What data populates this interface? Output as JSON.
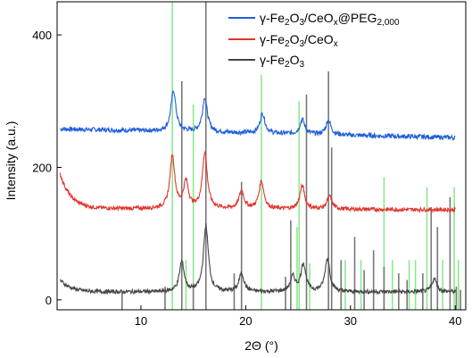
{
  "chart_data": {
    "type": "line",
    "xlabel": "2Θ (°)",
    "ylabel": "Intensity (a.u.)",
    "xlim": [
      2,
      41
    ],
    "ylim": [
      -15,
      450
    ],
    "xticks": [
      10,
      20,
      30,
      40
    ],
    "yticks": [
      0,
      200,
      400
    ],
    "legend_position": "top-right",
    "series": [
      {
        "name": "γ-Fe2O3/CeOx@PEG2,000",
        "color": "#1f5fd9",
        "baseline": 258,
        "baseline_end": 245,
        "noise": 3.5,
        "peaks": [
          [
            13.1,
            62
          ],
          [
            16.1,
            52
          ],
          [
            21.6,
            30
          ],
          [
            25.4,
            22
          ],
          [
            27.9,
            22
          ]
        ]
      },
      {
        "name": "γ-Fe2O3/CeOx",
        "color": "#e0352c",
        "baseline": 138,
        "baseline_end": 136,
        "start_value": 190,
        "noise": 3,
        "peaks": [
          [
            13.0,
            80
          ],
          [
            14.3,
            40
          ],
          [
            16.1,
            85
          ],
          [
            19.6,
            27
          ],
          [
            21.5,
            42
          ],
          [
            25.4,
            35
          ],
          [
            28.0,
            20
          ]
        ]
      },
      {
        "name": "γ-Fe2O3",
        "color": "#454545",
        "baseline": 12,
        "baseline_end": 12,
        "start_value": 30,
        "noise": 3,
        "peaks": [
          [
            13.9,
            45
          ],
          [
            16.2,
            100
          ],
          [
            19.6,
            28
          ],
          [
            24.5,
            22
          ],
          [
            25.5,
            42
          ],
          [
            27.8,
            50
          ],
          [
            38.0,
            20
          ]
        ]
      }
    ],
    "reference_green": [
      [
        13.0,
        450
      ],
      [
        15.0,
        295
      ],
      [
        21.5,
        340
      ],
      [
        25.1,
        300
      ],
      [
        33.2,
        185
      ],
      [
        37.3,
        170
      ],
      [
        39.9,
        170
      ],
      [
        14.3,
        60
      ],
      [
        24.9,
        110
      ],
      [
        26.1,
        55
      ],
      [
        29.5,
        60
      ],
      [
        31.0,
        60
      ],
      [
        34.0,
        60
      ],
      [
        35.6,
        60
      ],
      [
        36.2,
        60
      ],
      [
        38.8,
        60
      ],
      [
        40.3,
        60
      ]
    ],
    "reference_gray": [
      [
        13.9,
        330
      ],
      [
        16.2,
        450
      ],
      [
        19.6,
        178
      ],
      [
        24.3,
        120
      ],
      [
        25.8,
        310
      ],
      [
        27.9,
        345
      ],
      [
        28.2,
        230
      ],
      [
        8.2,
        12
      ],
      [
        12.3,
        20
      ],
      [
        15.0,
        25
      ],
      [
        18.9,
        40
      ],
      [
        23.8,
        35
      ],
      [
        29.1,
        60
      ],
      [
        30.4,
        95
      ],
      [
        31.3,
        45
      ],
      [
        32.2,
        75
      ],
      [
        33.2,
        50
      ],
      [
        34.6,
        40
      ],
      [
        35.4,
        30
      ],
      [
        36.9,
        40
      ],
      [
        37.7,
        140
      ],
      [
        38.3,
        110
      ],
      [
        39.5,
        155
      ],
      [
        40.1,
        20
      ],
      [
        40.5,
        15
      ]
    ]
  }
}
